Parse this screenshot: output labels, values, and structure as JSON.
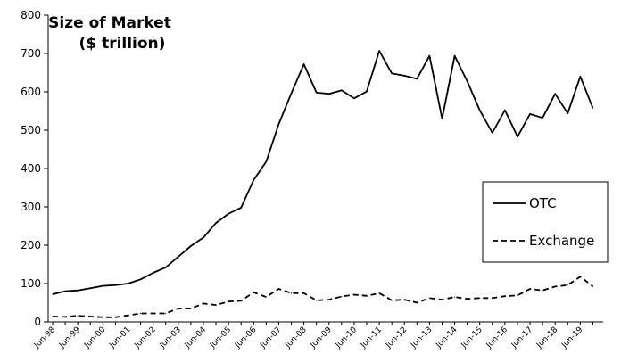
{
  "chart_data": {
    "type": "line",
    "title_lines": [
      "Size of Market",
      "($ trillion)"
    ],
    "xlabel": "",
    "ylabel": "",
    "ylim": [
      0,
      800
    ],
    "yticks": [
      0,
      100,
      200,
      300,
      400,
      500,
      600,
      700,
      800
    ],
    "grid": false,
    "legend_position": "right",
    "x": [
      "Jun-98",
      "Dec-98",
      "Jun-99",
      "Dec-99",
      "Jun-00",
      "Dec-00",
      "Jun-01",
      "Dec-01",
      "Jun-02",
      "Dec-02",
      "Jun-03",
      "Dec-03",
      "Jun-04",
      "Dec-04",
      "Jun-05",
      "Dec-05",
      "Jun-06",
      "Dec-06",
      "Jun-07",
      "Dec-07",
      "Jun-08",
      "Dec-08",
      "Jun-09",
      "Dec-09",
      "Jun-10",
      "Dec-10",
      "Jun-11",
      "Dec-11",
      "Jun-12",
      "Dec-12",
      "Jun-13",
      "Dec-13",
      "Jun-14",
      "Dec-14",
      "Jun-15",
      "Dec-15",
      "Jun-16",
      "Dec-16",
      "Jun-17",
      "Dec-17",
      "Jun-18",
      "Dec-18",
      "Jun-19",
      "Dec-19"
    ],
    "xtick_labels": [
      "Jun-98",
      "Jun-99",
      "Jun-00",
      "Jun-01",
      "Jun-02",
      "Jun-03",
      "Jun-04",
      "Jun-05",
      "Jun-06",
      "Jun-07",
      "Jun-08",
      "Jun-09",
      "Jun-10",
      "Jun-11",
      "Jun-12",
      "Jun-13",
      "Jun-14",
      "Jun-15",
      "Jun-16",
      "Jun-17",
      "Jun-18",
      "Jun-19"
    ],
    "series": [
      {
        "name": "OTC",
        "style": "solid",
        "values": [
          72,
          80,
          82,
          88,
          94,
          96,
          100,
          111,
          128,
          142,
          170,
          198,
          220,
          258,
          282,
          298,
          370,
          418,
          516,
          596,
          672,
          598,
          595,
          604,
          583,
          601,
          707,
          648,
          642,
          634,
          694,
          530,
          694,
          628,
          552,
          493,
          552,
          483,
          542,
          532,
          595,
          544,
          640,
          558
        ]
      },
      {
        "name": "Exchange",
        "style": "dashed",
        "values": [
          14,
          13,
          16,
          14,
          12,
          12,
          17,
          22,
          22,
          22,
          35,
          35,
          48,
          44,
          53,
          55,
          77,
          65,
          86,
          75,
          75,
          56,
          58,
          66,
          71,
          68,
          75,
          56,
          58,
          50,
          62,
          58,
          65,
          60,
          62,
          62,
          67,
          69,
          86,
          82,
          92,
          96,
          118,
          93
        ]
      }
    ],
    "colors": {
      "line": "#000000",
      "background": "#ffffff"
    }
  }
}
